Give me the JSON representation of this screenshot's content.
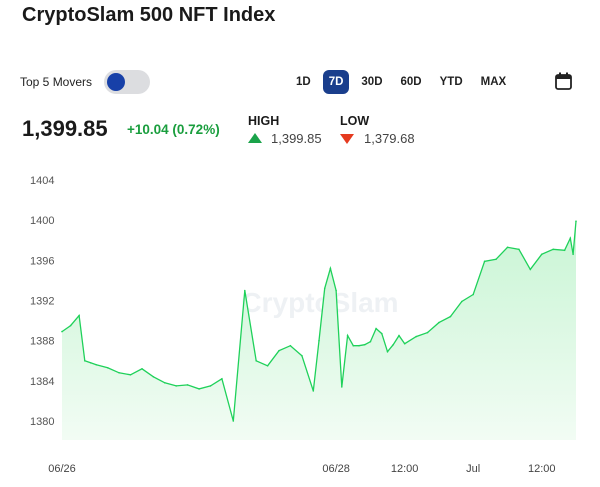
{
  "header": {
    "title": "CryptoSlam 500 NFT Index"
  },
  "controls": {
    "movers_label": "Top 5 Movers",
    "movers_enabled": true,
    "ranges": [
      "1D",
      "7D",
      "30D",
      "60D",
      "YTD",
      "MAX"
    ],
    "active_range": "7D",
    "calendar_icon": "calendar-icon"
  },
  "summary": {
    "price": "1,399.85",
    "change": "+10.04 (0.72%)",
    "high_label": "HIGH",
    "high_value": "1,399.85",
    "low_label": "LOW",
    "low_value": "1,379.68"
  },
  "colors": {
    "line": "#1fd15a",
    "fill_top": "#c8f5d4",
    "fill_bottom": "#f2fcf4",
    "up": "#1aa34a",
    "down": "#e53a1f",
    "accent": "#1a3e8c"
  },
  "watermark": "CryptoSlam",
  "chart_data": {
    "type": "area",
    "x_unit": "hours since 06/26 00:00",
    "x_ticks": [
      {
        "label": "06/26",
        "x": 0
      },
      {
        "label": "06/28",
        "x": 48
      },
      {
        "label": "12:00",
        "x": 60
      },
      {
        "label": "Jul",
        "x": 72
      },
      {
        "label": "12:00",
        "x": 84
      }
    ],
    "y_ticks": [
      1380,
      1384,
      1388,
      1392,
      1396,
      1400,
      1404
    ],
    "xlim": [
      0,
      90
    ],
    "ylim": [
      1378,
      1405
    ],
    "grid": false,
    "x": [
      0,
      1.5,
      3,
      4,
      5,
      6,
      8,
      10,
      12,
      14,
      16,
      18,
      20,
      22,
      24,
      26,
      28,
      30,
      32,
      34,
      36,
      38,
      40,
      42,
      44,
      45,
      46,
      47,
      48,
      49,
      50,
      51,
      52,
      53,
      54,
      55,
      56,
      57,
      58,
      59,
      60,
      62,
      64,
      66,
      68,
      70,
      72,
      74,
      76,
      78,
      80,
      82,
      84,
      86,
      88,
      89,
      89.5,
      90
    ],
    "series": [
      {
        "values": [
          1388.9,
          1389.5,
          1390.5,
          1386,
          1385.8,
          1385.6,
          1385.3,
          1384.8,
          1384.6,
          1385.2,
          1384.4,
          1383.8,
          1383.5,
          1383.6,
          1383.2,
          1383.5,
          1384.2,
          1380,
          1393,
          1386,
          1385.5,
          1387,
          1387.5,
          1386.5,
          1383,
          1388,
          1393.2,
          1395.2,
          1393,
          1383.4,
          1388.5,
          1387.5,
          1387.5,
          1387.6,
          1387.9,
          1389.2,
          1388.7,
          1386.9,
          1387.6,
          1388.5,
          1387.7,
          1388.4,
          1388.8,
          1389.8,
          1390.4,
          1391.9,
          1392.6,
          1395.9,
          1396.1,
          1397.3,
          1397.1,
          1395.1,
          1396.6,
          1397.1,
          1397.0,
          1398.2,
          1396.6,
          1399.9
        ]
      }
    ]
  }
}
